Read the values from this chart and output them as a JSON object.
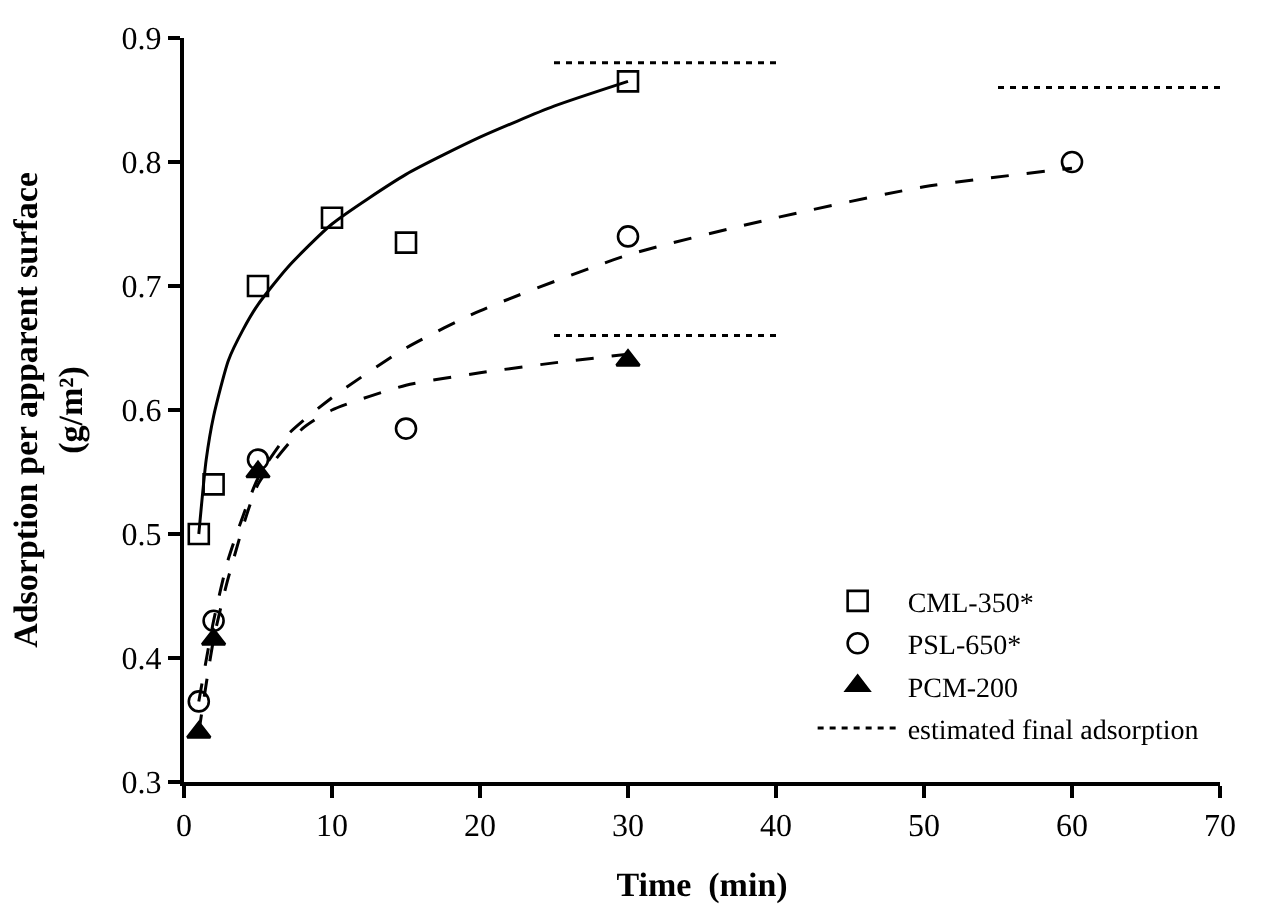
{
  "chart_data": {
    "type": "scatter",
    "xlabel": "Time  (min)",
    "ylabel": "Adsorption per apparent surface (g/m²)",
    "xlim": [
      0,
      70
    ],
    "xticks": [
      0,
      10,
      20,
      30,
      40,
      50,
      60,
      70
    ],
    "ylim": [
      0.3,
      0.9
    ],
    "yticks": [
      0.3,
      0.4,
      0.5,
      0.6,
      0.7,
      0.8,
      0.9
    ],
    "legend": "bottom right",
    "series": [
      {
        "name": "CML-350*",
        "marker": "square",
        "color": "#000000",
        "x": [
          1,
          2,
          5,
          10,
          15,
          30
        ],
        "values": [
          0.5,
          0.54,
          0.7,
          0.755,
          0.735,
          0.865
        ]
      },
      {
        "name": "PSL-650*",
        "marker": "circle",
        "color": "#000000",
        "x": [
          1,
          2,
          5,
          15,
          30,
          60
        ],
        "values": [
          0.365,
          0.43,
          0.56,
          0.585,
          0.74,
          0.8
        ]
      },
      {
        "name": "PCM-200",
        "marker": "triangle",
        "color": "#000000",
        "x": [
          1,
          2,
          5,
          30
        ],
        "values": [
          0.34,
          0.415,
          0.55,
          0.64
        ]
      },
      {
        "type": "line",
        "color": "#000000",
        "line_style": "solid",
        "x": [
          1,
          1.5,
          2,
          3,
          4,
          5,
          7,
          10,
          15,
          20,
          25,
          30
        ],
        "values": [
          0.5,
          0.56,
          0.595,
          0.64,
          0.665,
          0.685,
          0.715,
          0.75,
          0.79,
          0.82,
          0.845,
          0.865
        ]
      },
      {
        "type": "line",
        "color": "#000000",
        "line_style": "dashed",
        "x": [
          1,
          2,
          3,
          5,
          7,
          10,
          15,
          20,
          30,
          40,
          50,
          60
        ],
        "values": [
          0.365,
          0.43,
          0.48,
          0.545,
          0.58,
          0.61,
          0.65,
          0.68,
          0.725,
          0.755,
          0.78,
          0.795
        ]
      },
      {
        "type": "line",
        "color": "#000000",
        "line_style": "dashed",
        "x": [
          1,
          2,
          3,
          5,
          8,
          10,
          15,
          20,
          25,
          30
        ],
        "values": [
          0.34,
          0.415,
          0.465,
          0.54,
          0.585,
          0.6,
          0.62,
          0.63,
          0.638,
          0.645
        ]
      },
      {
        "name": "estimated final adsorption",
        "type": "line",
        "color": "#000000",
        "line_style": "dotted",
        "x": [
          25,
          40
        ],
        "values": [
          0.88,
          0.88
        ]
      },
      {
        "type": "line",
        "color": "#000000",
        "line_style": "dotted",
        "x": [
          25,
          40
        ],
        "values": [
          0.66,
          0.66
        ]
      },
      {
        "type": "line",
        "color": "#000000",
        "line_style": "dotted",
        "x": [
          55,
          70
        ],
        "values": [
          0.86,
          0.86
        ]
      }
    ]
  }
}
